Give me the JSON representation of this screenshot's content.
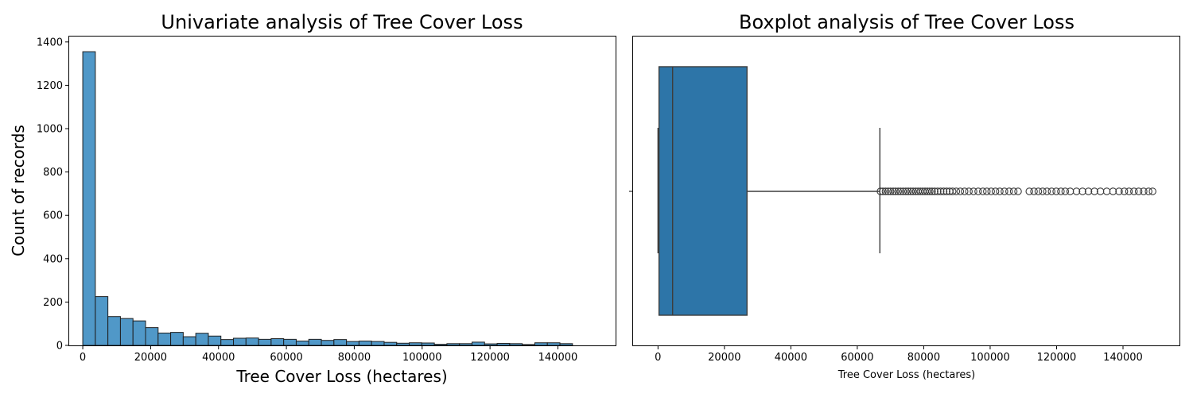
{
  "chart_data": [
    {
      "type": "bar",
      "title": "Univariate analysis of Tree Cover Loss",
      "xlabel": "Tree Cover Loss (hectares)",
      "ylabel": "Count of records",
      "xlim": [
        -4000,
        157000
      ],
      "ylim": [
        0,
        1425
      ],
      "xticks": [
        0,
        20000,
        40000,
        60000,
        80000,
        100000,
        120000,
        140000
      ],
      "yticks": [
        0,
        200,
        400,
        600,
        800,
        1000,
        1200,
        1400
      ],
      "bin_start": 0,
      "bin_width": 3700,
      "counts": [
        1355,
        225,
        133,
        124,
        113,
        82,
        57,
        60,
        40,
        56,
        43,
        27,
        33,
        34,
        28,
        31,
        28,
        20,
        28,
        23,
        27,
        18,
        20,
        18,
        14,
        10,
        12,
        11,
        5,
        8,
        8,
        15,
        7,
        9,
        8,
        4,
        12,
        12,
        8
      ],
      "bar_color": "#5098c8",
      "edge_color": "#1f1f1f"
    },
    {
      "type": "boxplot",
      "title": "Boxplot analysis of Tree Cover Loss",
      "xlabel": "Tree Cover Loss (hectares)",
      "xlim": [
        -7500,
        157000
      ],
      "xticks": [
        0,
        20000,
        40000,
        60000,
        80000,
        100000,
        120000,
        140000
      ],
      "min": 0,
      "q1": 300,
      "median": 4400,
      "q3": 26800,
      "whisker_high": 66800,
      "outliers": [
        67000,
        67700,
        68500,
        69300,
        70000,
        70800,
        71500,
        72300,
        73000,
        73800,
        74600,
        75300,
        76100,
        76800,
        77600,
        78300,
        79000,
        79700,
        80400,
        81100,
        81800,
        82500,
        83300,
        84200,
        85100,
        86000,
        86900,
        87800,
        88700,
        89800,
        91000,
        92300,
        93600,
        95000,
        96400,
        97800,
        99000,
        100300,
        101600,
        102900,
        104300,
        105700,
        107100,
        108400,
        111800,
        113200,
        114500,
        115800,
        117100,
        118500,
        119900,
        121300,
        122600,
        124100,
        126000,
        127800,
        129600,
        131400,
        133200,
        135100,
        137000,
        138800,
        140400,
        141800,
        143300,
        144700,
        146200,
        147700,
        148900
      ],
      "box_color": "#2d75a8",
      "line_color": "#3d3d3d"
    }
  ]
}
